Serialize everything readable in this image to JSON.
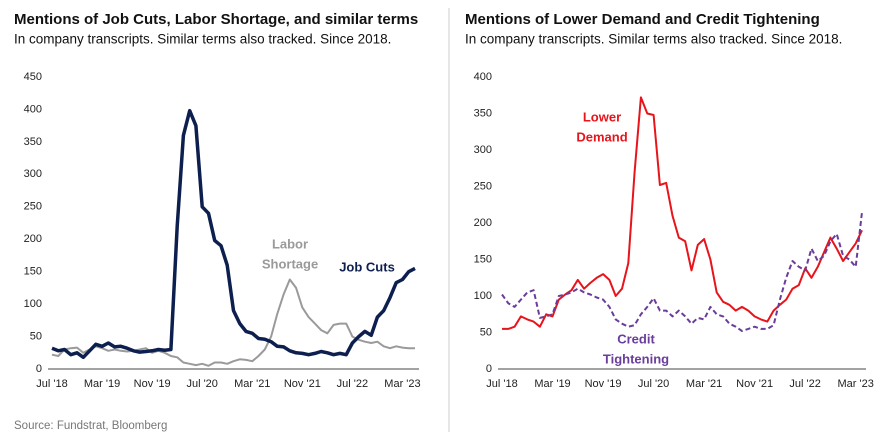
{
  "chart_data": [
    {
      "type": "line",
      "title": "Mentions of Job Cuts, Labor Shortage, and similar terms",
      "subtitle": "In company transcripts. Similar terms also tracked. Since 2018.",
      "categories": [
        "Jul '18",
        null,
        null,
        null,
        null,
        null,
        null,
        null,
        "Mar '19",
        null,
        null,
        null,
        null,
        null,
        null,
        null,
        "Nov '19",
        null,
        null,
        null,
        null,
        null,
        null,
        null,
        "Jul '20",
        null,
        null,
        null,
        null,
        null,
        null,
        null,
        "Mar '21",
        null,
        null,
        null,
        null,
        null,
        null,
        null,
        "Nov '21",
        null,
        null,
        null,
        null,
        null,
        null,
        null,
        "Jul '22",
        null,
        null,
        null,
        null,
        null,
        null,
        null,
        "Mar '23",
        null,
        null
      ],
      "ylim": [
        0,
        450
      ],
      "yticks": [
        0,
        50,
        100,
        150,
        200,
        250,
        300,
        350,
        400,
        450
      ],
      "grid": false,
      "series": [
        {
          "name": "Labor Shortage",
          "color": "#9a9a9a",
          "style": "solid",
          "width": 2,
          "values": [
            22,
            20,
            30,
            32,
            33,
            25,
            30,
            35,
            32,
            28,
            30,
            28,
            27,
            28,
            30,
            32,
            25,
            28,
            25,
            20,
            18,
            10,
            8,
            6,
            8,
            5,
            10,
            10,
            8,
            12,
            15,
            14,
            12,
            20,
            30,
            50,
            85,
            115,
            138,
            125,
            95,
            80,
            70,
            60,
            55,
            68,
            70,
            70,
            50,
            45,
            42,
            40,
            42,
            35,
            32,
            35,
            33,
            32,
            32
          ]
        },
        {
          "name": "Job Cuts",
          "color": "#0d1f4f",
          "style": "solid",
          "width": 3.5,
          "values": [
            32,
            28,
            30,
            22,
            25,
            18,
            28,
            38,
            35,
            40,
            34,
            35,
            32,
            28,
            26,
            27,
            28,
            30,
            29,
            30,
            220,
            360,
            398,
            375,
            250,
            240,
            198,
            190,
            160,
            90,
            70,
            58,
            55,
            47,
            46,
            42,
            35,
            34,
            28,
            25,
            24,
            22,
            24,
            27,
            25,
            22,
            24,
            22,
            40,
            50,
            58,
            52,
            80,
            90,
            110,
            133,
            138,
            150,
            155
          ]
        }
      ],
      "annotations": [
        [
          "Labor",
          "Shortage"
        ],
        [
          "Job Cuts"
        ]
      ]
    },
    {
      "type": "line",
      "title": "Mentions of Lower Demand and Credit Tightening",
      "subtitle": "In company transcripts. Similar terms also tracked. Since 2018.",
      "categories": [
        "Jul '18",
        null,
        null,
        null,
        null,
        null,
        null,
        null,
        "Mar '19",
        null,
        null,
        null,
        null,
        null,
        null,
        null,
        "Nov '19",
        null,
        null,
        null,
        null,
        null,
        null,
        null,
        "Jul '20",
        null,
        null,
        null,
        null,
        null,
        null,
        null,
        "Mar '21",
        null,
        null,
        null,
        null,
        null,
        null,
        null,
        "Nov '21",
        null,
        null,
        null,
        null,
        null,
        null,
        null,
        "Jul '22",
        null,
        null,
        null,
        null,
        null,
        null,
        null,
        "Mar '23",
        null
      ],
      "ylim": [
        0,
        400
      ],
      "yticks": [
        0,
        50,
        100,
        150,
        200,
        250,
        300,
        350,
        400
      ],
      "grid": false,
      "series": [
        {
          "name": "Lower Demand",
          "color": "#e8141b",
          "style": "solid",
          "width": 2,
          "values": [
            55,
            55,
            58,
            72,
            68,
            65,
            58,
            75,
            72,
            95,
            102,
            108,
            122,
            110,
            118,
            125,
            130,
            122,
            100,
            110,
            145,
            270,
            372,
            350,
            348,
            252,
            255,
            210,
            180,
            175,
            135,
            170,
            178,
            150,
            105,
            92,
            88,
            80,
            85,
            80,
            72,
            68,
            65,
            80,
            88,
            95,
            110,
            115,
            138,
            125,
            140,
            160,
            180,
            165,
            148,
            160,
            172,
            190
          ]
        },
        {
          "name": "Credit Tightening",
          "color": "#6a3d9a",
          "style": "dashed",
          "width": 2,
          "values": [
            102,
            90,
            85,
            95,
            105,
            108,
            70,
            72,
            75,
            100,
            102,
            105,
            110,
            105,
            102,
            98,
            95,
            85,
            68,
            62,
            58,
            60,
            75,
            85,
            97,
            80,
            80,
            72,
            80,
            72,
            62,
            70,
            68,
            85,
            75,
            72,
            62,
            58,
            52,
            55,
            58,
            55,
            55,
            60,
            95,
            125,
            148,
            140,
            135,
            165,
            148,
            155,
            175,
            185,
            155,
            150,
            140,
            215
          ]
        }
      ],
      "annotations": [
        [
          "Lower",
          "Demand"
        ],
        [
          "Credit",
          "Tightening"
        ]
      ]
    }
  ],
  "source": "Source: Fundstrat, Bloomberg"
}
